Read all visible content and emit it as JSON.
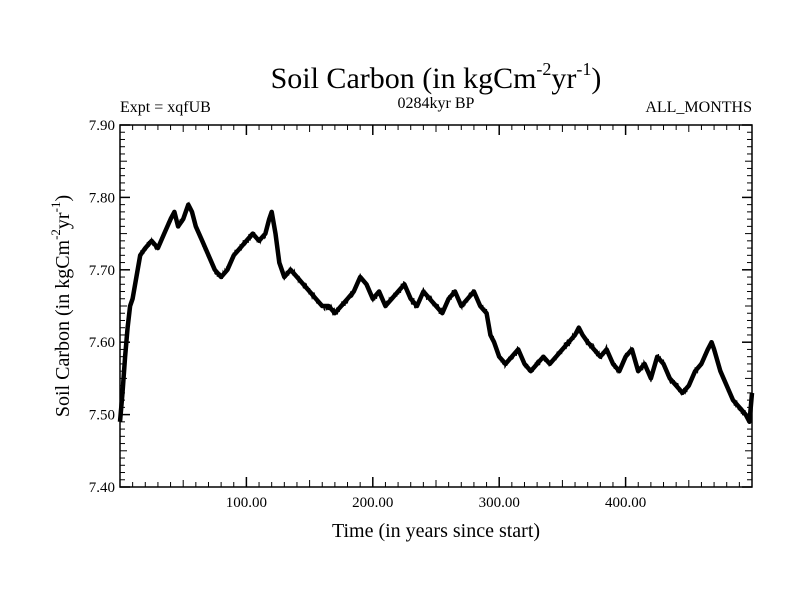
{
  "chart_data": {
    "type": "line",
    "title": {
      "main": "Soil Carbon (in kgCm",
      "sup1": "-2",
      "mid": "yr",
      "sup2": "-1",
      "end": ")"
    },
    "header": {
      "left": "Expt = xqfUB",
      "center": "0284kyr BP",
      "right": "ALL_MONTHS"
    },
    "xlabel": "Time (in years since start)",
    "ylabel": {
      "main": "Soil Carbon (in kgCm",
      "sup1": "-2",
      "mid": "yr",
      "sup2": "-1",
      "end": ")"
    },
    "xlim": [
      0,
      500
    ],
    "ylim": [
      7.4,
      7.9
    ],
    "xticks": [
      {
        "value": 100,
        "label": "100.00"
      },
      {
        "value": 200,
        "label": "200.00"
      },
      {
        "value": 300,
        "label": "300.00"
      },
      {
        "value": 400,
        "label": "400.00"
      }
    ],
    "yticks": [
      {
        "value": 7.4,
        "label": "7.40"
      },
      {
        "value": 7.5,
        "label": "7.50"
      },
      {
        "value": 7.6,
        "label": "7.60"
      },
      {
        "value": 7.7,
        "label": "7.70"
      },
      {
        "value": 7.8,
        "label": "7.80"
      },
      {
        "value": 7.9,
        "label": "7.90"
      }
    ],
    "grid": false,
    "series": [
      {
        "name": "Soil Carbon",
        "color": "#000000",
        "x": [
          0,
          2,
          4,
          6,
          8,
          10,
          13,
          16,
          20,
          25,
          30,
          35,
          40,
          43,
          46,
          50,
          54,
          57,
          60,
          65,
          70,
          75,
          80,
          85,
          90,
          95,
          100,
          105,
          110,
          115,
          118,
          120,
          123,
          126,
          130,
          135,
          140,
          145,
          150,
          155,
          160,
          165,
          170,
          175,
          180,
          185,
          190,
          195,
          200,
          205,
          210,
          215,
          220,
          225,
          230,
          235,
          240,
          245,
          250,
          255,
          260,
          265,
          270,
          275,
          280,
          285,
          290,
          293,
          296,
          300,
          305,
          310,
          315,
          320,
          325,
          330,
          335,
          340,
          345,
          350,
          355,
          360,
          363,
          366,
          370,
          375,
          380,
          385,
          390,
          395,
          400,
          405,
          410,
          415,
          420,
          425,
          430,
          435,
          440,
          445,
          450,
          455,
          460,
          465,
          468,
          470,
          475,
          480,
          485,
          490,
          495,
          498,
          500
        ],
        "y": [
          7.49,
          7.53,
          7.58,
          7.62,
          7.65,
          7.66,
          7.69,
          7.72,
          7.73,
          7.74,
          7.73,
          7.75,
          7.77,
          7.78,
          7.76,
          7.77,
          7.79,
          7.78,
          7.76,
          7.74,
          7.72,
          7.7,
          7.69,
          7.7,
          7.72,
          7.73,
          7.74,
          7.75,
          7.74,
          7.75,
          7.77,
          7.78,
          7.75,
          7.71,
          7.69,
          7.7,
          7.69,
          7.68,
          7.67,
          7.66,
          7.65,
          7.65,
          7.64,
          7.65,
          7.66,
          7.67,
          7.69,
          7.68,
          7.66,
          7.67,
          7.65,
          7.66,
          7.67,
          7.68,
          7.66,
          7.65,
          7.67,
          7.66,
          7.65,
          7.64,
          7.66,
          7.67,
          7.65,
          7.66,
          7.67,
          7.65,
          7.64,
          7.61,
          7.6,
          7.58,
          7.57,
          7.58,
          7.59,
          7.57,
          7.56,
          7.57,
          7.58,
          7.57,
          7.58,
          7.59,
          7.6,
          7.61,
          7.62,
          7.61,
          7.6,
          7.59,
          7.58,
          7.59,
          7.57,
          7.56,
          7.58,
          7.59,
          7.56,
          7.57,
          7.55,
          7.58,
          7.57,
          7.55,
          7.54,
          7.53,
          7.54,
          7.56,
          7.57,
          7.59,
          7.6,
          7.59,
          7.56,
          7.54,
          7.52,
          7.51,
          7.5,
          7.49,
          7.53
        ]
      }
    ]
  }
}
